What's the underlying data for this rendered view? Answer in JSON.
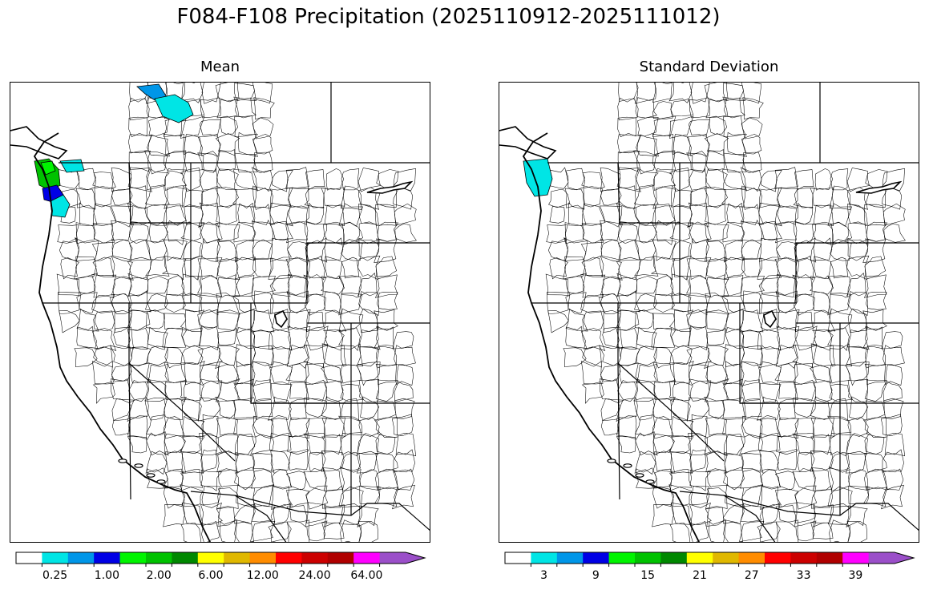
{
  "title": "F084-F108 Precipitation (2025110912-2025111012)",
  "panels": [
    {
      "name": "Mean",
      "colorbar": {
        "colors": [
          "#ffffff",
          "#00e5e5",
          "#0096e8",
          "#0000e5",
          "#00f500",
          "#00c200",
          "#008800",
          "#ffff00",
          "#e0b800",
          "#ff8c00",
          "#ff0000",
          "#cc0000",
          "#b00000",
          "#ff00ff",
          "#9b4fc9"
        ],
        "tick_labels": [
          "0.25",
          "1.00",
          "2.00",
          "6.00",
          "12.00",
          "24.00",
          "64.00"
        ],
        "extend": "max"
      }
    },
    {
      "name": "Standard Deviation",
      "colorbar": {
        "colors": [
          "#ffffff",
          "#00e5e5",
          "#0096e8",
          "#0000e5",
          "#00f500",
          "#00c200",
          "#008800",
          "#ffff00",
          "#e0b800",
          "#ff8c00",
          "#ff0000",
          "#cc0000",
          "#b00000",
          "#ff00ff",
          "#9b4fc9"
        ],
        "tick_labels": [
          "3",
          "9",
          "15",
          "21",
          "27",
          "33",
          "39"
        ],
        "extend": "max"
      }
    }
  ]
}
